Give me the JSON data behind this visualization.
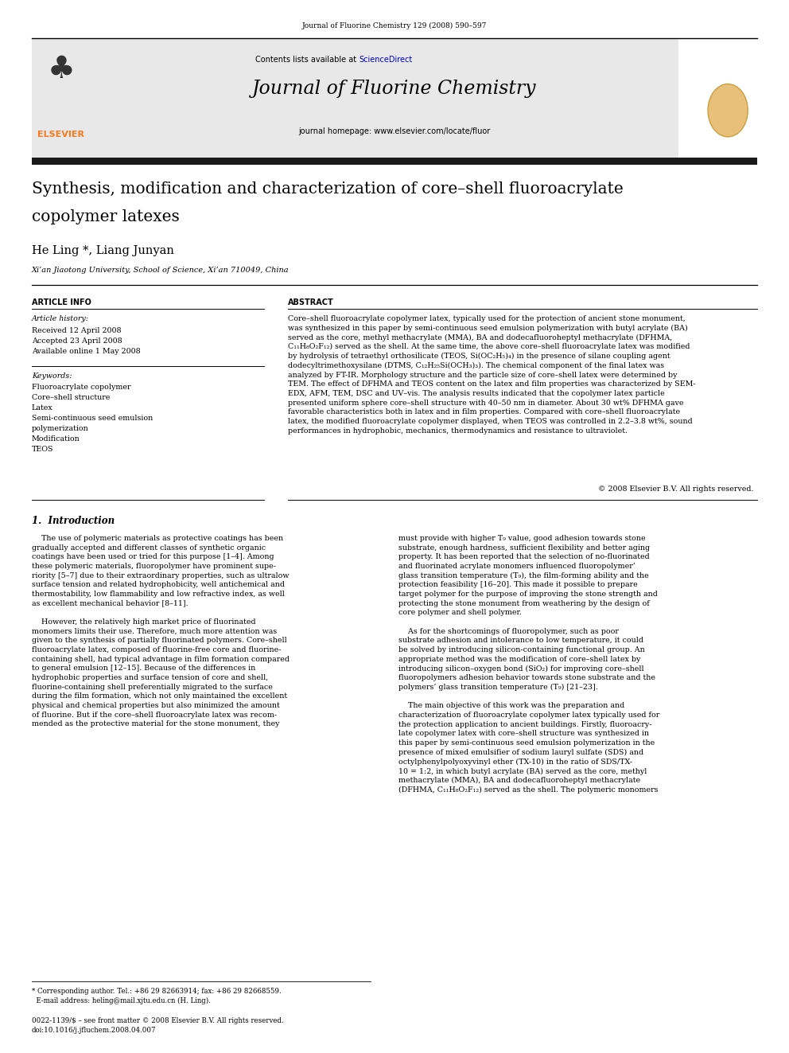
{
  "page_width": 9.92,
  "page_height": 13.23,
  "background_color": "#ffffff",
  "top_journal_ref": "Journal of Fluorine Chemistry 129 (2008) 590–597",
  "journal_header_bg": "#e8e8e8",
  "journal_name": "Journal of Fluorine Chemistry",
  "contents_text_pre": "Contents lists available at ",
  "contents_text_link": "ScienceDirect",
  "sciencedirect_color": "#0000cc",
  "homepage_text": "journal homepage: www.elsevier.com/locate/fluor",
  "thick_bar_color": "#1a1a1a",
  "article_title_line1": "Synthesis, modification and characterization of core–shell fluoroacrylate",
  "article_title_line2": "copolymer latexes",
  "authors": "He Ling *, Liang Junyan",
  "affiliation": "Xi’an Jiaotong University, School of Science, Xi’an 710049, China",
  "article_info_label": "ARTICLE INFO",
  "abstract_label": "ABSTRACT",
  "article_history_label": "Article history:",
  "received": "Received 12 April 2008",
  "accepted": "Accepted 23 April 2008",
  "available": "Available online 1 May 2008",
  "keywords_label": "Keywords:",
  "keywords": [
    "Fluoroacrylate copolymer",
    "Core–shell structure",
    "Latex",
    "Semi-continuous seed emulsion",
    "polymerization",
    "Modification",
    "TEOS"
  ],
  "abstract_wrapped": "Core–shell fluoroacrylate copolymer latex, typically used for the protection of ancient stone monument,\nwas synthesized in this paper by semi-continuous seed emulsion polymerization with butyl acrylate (BA)\nserved as the core, methyl methacrylate (MMA), BA and dodecafluoroheptyl methacrylate (DFHMA,\nC₁₁H₈O₂F₁₂) served as the shell. At the same time, the above core–shell fluoroacrylate latex was modified\nby hydrolysis of tetraethyl orthosilicate (TEOS, Si(OC₂H₅)₄) in the presence of silane coupling agent\ndodecyltrimethoxysilane (DTMS, C₁₂H₂₅Si(OCH₃)₃). The chemical component of the final latex was\nanalyzed by FT-IR. Morphology structure and the particle size of core–shell latex were determined by\nTEM. The effect of DFHMA and TEOS content on the latex and film properties was characterized by SEM-\nEDX, AFM, TEM, DSC and UV–vis. The analysis results indicated that the copolymer latex particle\npresented uniform sphere core–shell structure with 40–50 nm in diameter. About 30 wt% DFHMA gave\nfavorable characteristics both in latex and in film properties. Compared with core–shell fluoroacrylate\nlatex, the modified fluoroacrylate copolymer displayed, when TEOS was controlled in 2.2–3.8 wt%, sound\nperformances in hydrophobic, mechanics, thermodynamics and resistance to ultraviolet.",
  "copyright_text": "© 2008 Elsevier B.V. All rights reserved.",
  "section1_title": "1.  Introduction",
  "intro_left": "    The use of polymeric materials as protective coatings has been\ngradually accepted and different classes of synthetic organic\ncoatings have been used or tried for this purpose [1–4]. Among\nthese polymeric materials, fluoropolymer have prominent supe-\nriority [5–7] due to their extraordinary properties, such as ultralow\nsurface tension and related hydrophobicity, well antichemical and\nthermostability, low flammability and low refractive index, as well\nas excellent mechanical behavior [8–11].\n\n    However, the relatively high market price of fluorinated\nmonomers limits their use. Therefore, much more attention was\ngiven to the synthesis of partially fluorinated polymers. Core–shell\nfluoroacrylate latex, composed of fluorine-free core and fluorine-\ncontaining shell, had typical advantage in film formation compared\nto general emulsion [12–15]. Because of the differences in\nhydrophobic properties and surface tension of core and shell,\nfluorine-containing shell preferentially migrated to the surface\nduring the film formation, which not only maintained the excellent\nphysical and chemical properties but also minimized the amount\nof fluorine. But if the core–shell fluoroacrylate latex was recom-\nmended as the protective material for the stone monument, they",
  "intro_right": "must provide with higher T₉ value, good adhesion towards stone\nsubstrate, enough hardness, sufficient flexibility and better aging\nproperty. It has been reported that the selection of no-fluorinated\nand fluorinated acrylate monomers influenced fluoropolymer’\nglass transition temperature (T₉), the film-forming ability and the\nprotection feasibility [16–20]. This made it possible to prepare\ntarget polymer for the purpose of improving the stone strength and\nprotecting the stone monument from weathering by the design of\ncore polymer and shell polymer.\n\n    As for the shortcomings of fluoropolymer, such as poor\nsubstrate adhesion and intolerance to low temperature, it could\nbe solved by introducing silicon-containing functional group. An\nappropriate method was the modification of core–shell latex by\nintroducing silicon–oxygen bond (SiO₂) for improving core–shell\nfluoropolymers adhesion behavior towards stone substrate and the\npolymers’ glass transition temperature (T₉) [21–23].\n\n    The main objective of this work was the preparation and\ncharacterization of fluoroacrylate copolymer latex typically used for\nthe protection application to ancient buildings. Firstly, fluoroacry-\nlate copolymer latex with core–shell structure was synthesized in\nthis paper by semi-continuous seed emulsion polymerization in the\npresence of mixed emulsifier of sodium lauryl sulfate (SDS) and\noctylphenylpolyoxyvinyl ether (TX-10) in the ratio of SDS/TX-\n10 = 1:2, in which butyl acrylate (BA) served as the core, methyl\nmethacrylate (MMA), BA and dodecafluoroheptyl methacrylate\n(DFHMA, C₁₁H₈O₂F₁₂) served as the shell. The polymeric monomers",
  "footer_text": "* Corresponding author. Tel.: +86 29 82663914; fax: +86 29 82668559.\n  E-mail address: heling@mail.xjtu.edu.cn (H. Ling).",
  "footer_bottom": "0022-1139/$ – see front matter © 2008 Elsevier B.V. All rights reserved.\ndoi:10.1016/j.jfluchem.2008.04.007",
  "elsevier_orange": "#f47920"
}
